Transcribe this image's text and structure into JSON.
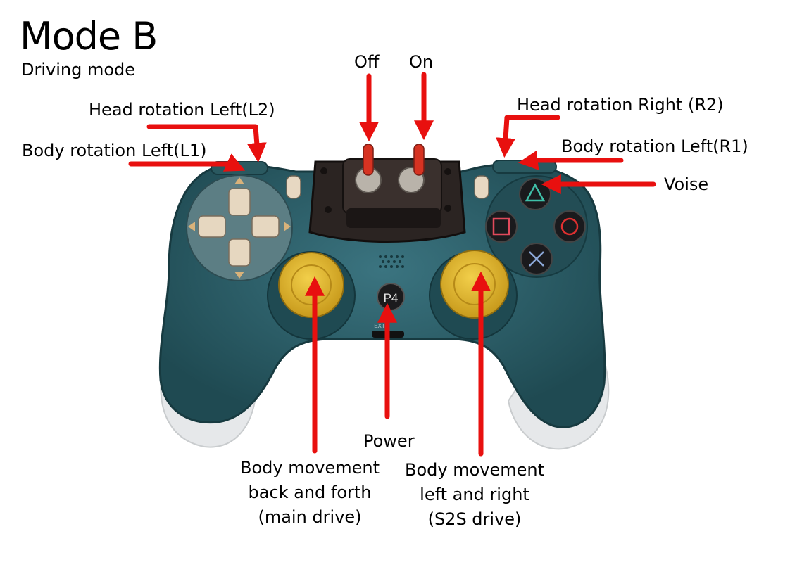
{
  "header": {
    "title": "Mode B",
    "subtitle": "Driving mode"
  },
  "labels": {
    "off": "Off",
    "on": "On",
    "head_left": "Head rotation Left(L2)",
    "body_left_l1": "Body rotation Left(L1)",
    "head_right": "Head rotation Right (R2)",
    "body_left_r1": "Body rotation Left(R1)",
    "voise": "Voise",
    "power": "Power",
    "left_stick": [
      "Body movement",
      "back and forth",
      "(main drive)"
    ],
    "right_stick": [
      "Body movement",
      "left and right",
      "(S2S drive)"
    ]
  },
  "controller": {
    "home_button_text": "P4",
    "ext_text": "EXT",
    "body_color": "#2f5f68",
    "stick_color": "#e0b52a",
    "grip_color": "#e6e8ea",
    "arrow_color": "#e8100f"
  }
}
